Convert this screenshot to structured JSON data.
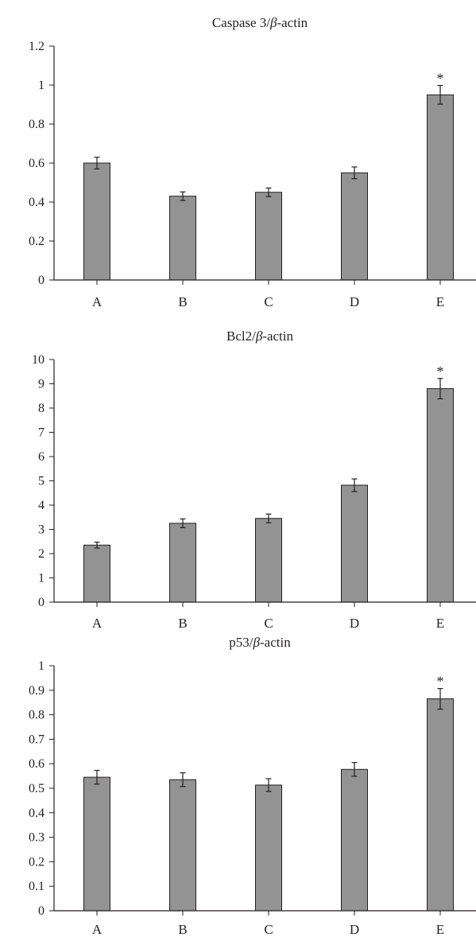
{
  "colors": {
    "bar": "#939393",
    "axis": "#231f20",
    "background": "#ffffff"
  },
  "chart_data": [
    {
      "type": "bar",
      "title": "Caspase 3/β-actin",
      "title_prefix": "Caspase 3/",
      "title_symbol": "β",
      "title_suffix": "-actin",
      "categories": [
        "A",
        "B",
        "C",
        "D",
        "E"
      ],
      "values": [
        0.6,
        0.43,
        0.45,
        0.55,
        0.95
      ],
      "errors": [
        0.03,
        0.022,
        0.022,
        0.03,
        0.048
      ],
      "annotations": [
        "",
        "",
        "",
        "",
        "*"
      ],
      "ylim": [
        0,
        1.2
      ],
      "yticks": [
        "0",
        "0.2",
        "0.4",
        "0.6",
        "0.8",
        "1",
        "1.2"
      ],
      "xlabel": "",
      "ylabel": "",
      "grid": false
    },
    {
      "type": "bar",
      "title": "Bcl2/β-actin",
      "title_prefix": "Bcl2/",
      "title_symbol": "β",
      "title_suffix": "-actin",
      "categories": [
        "A",
        "B",
        "C",
        "D",
        "E"
      ],
      "values": [
        2.35,
        3.25,
        3.45,
        4.82,
        8.8
      ],
      "errors": [
        0.12,
        0.18,
        0.18,
        0.26,
        0.42
      ],
      "annotations": [
        "",
        "",
        "",
        "",
        "*"
      ],
      "ylim": [
        0,
        10
      ],
      "yticks": [
        "0",
        "1",
        "2",
        "3",
        "4",
        "5",
        "6",
        "7",
        "8",
        "9",
        "10"
      ],
      "xlabel": "",
      "ylabel": "",
      "grid": false
    },
    {
      "type": "bar",
      "title": "p53/β-actin",
      "title_prefix": "p53/",
      "title_symbol": "β",
      "title_suffix": "-actin",
      "categories": [
        "A",
        "B",
        "C",
        "D",
        "E"
      ],
      "values": [
        0.545,
        0.535,
        0.513,
        0.577,
        0.865
      ],
      "errors": [
        0.028,
        0.028,
        0.026,
        0.028,
        0.042
      ],
      "annotations": [
        "",
        "",
        "",
        "",
        "*"
      ],
      "ylim": [
        0,
        1
      ],
      "yticks": [
        "0",
        "0.1",
        "0.2",
        "0.3",
        "0.4",
        "0.5",
        "0.6",
        "0.7",
        "0.8",
        "0.9",
        "1"
      ],
      "xlabel": "",
      "ylabel": "",
      "grid": false
    }
  ]
}
